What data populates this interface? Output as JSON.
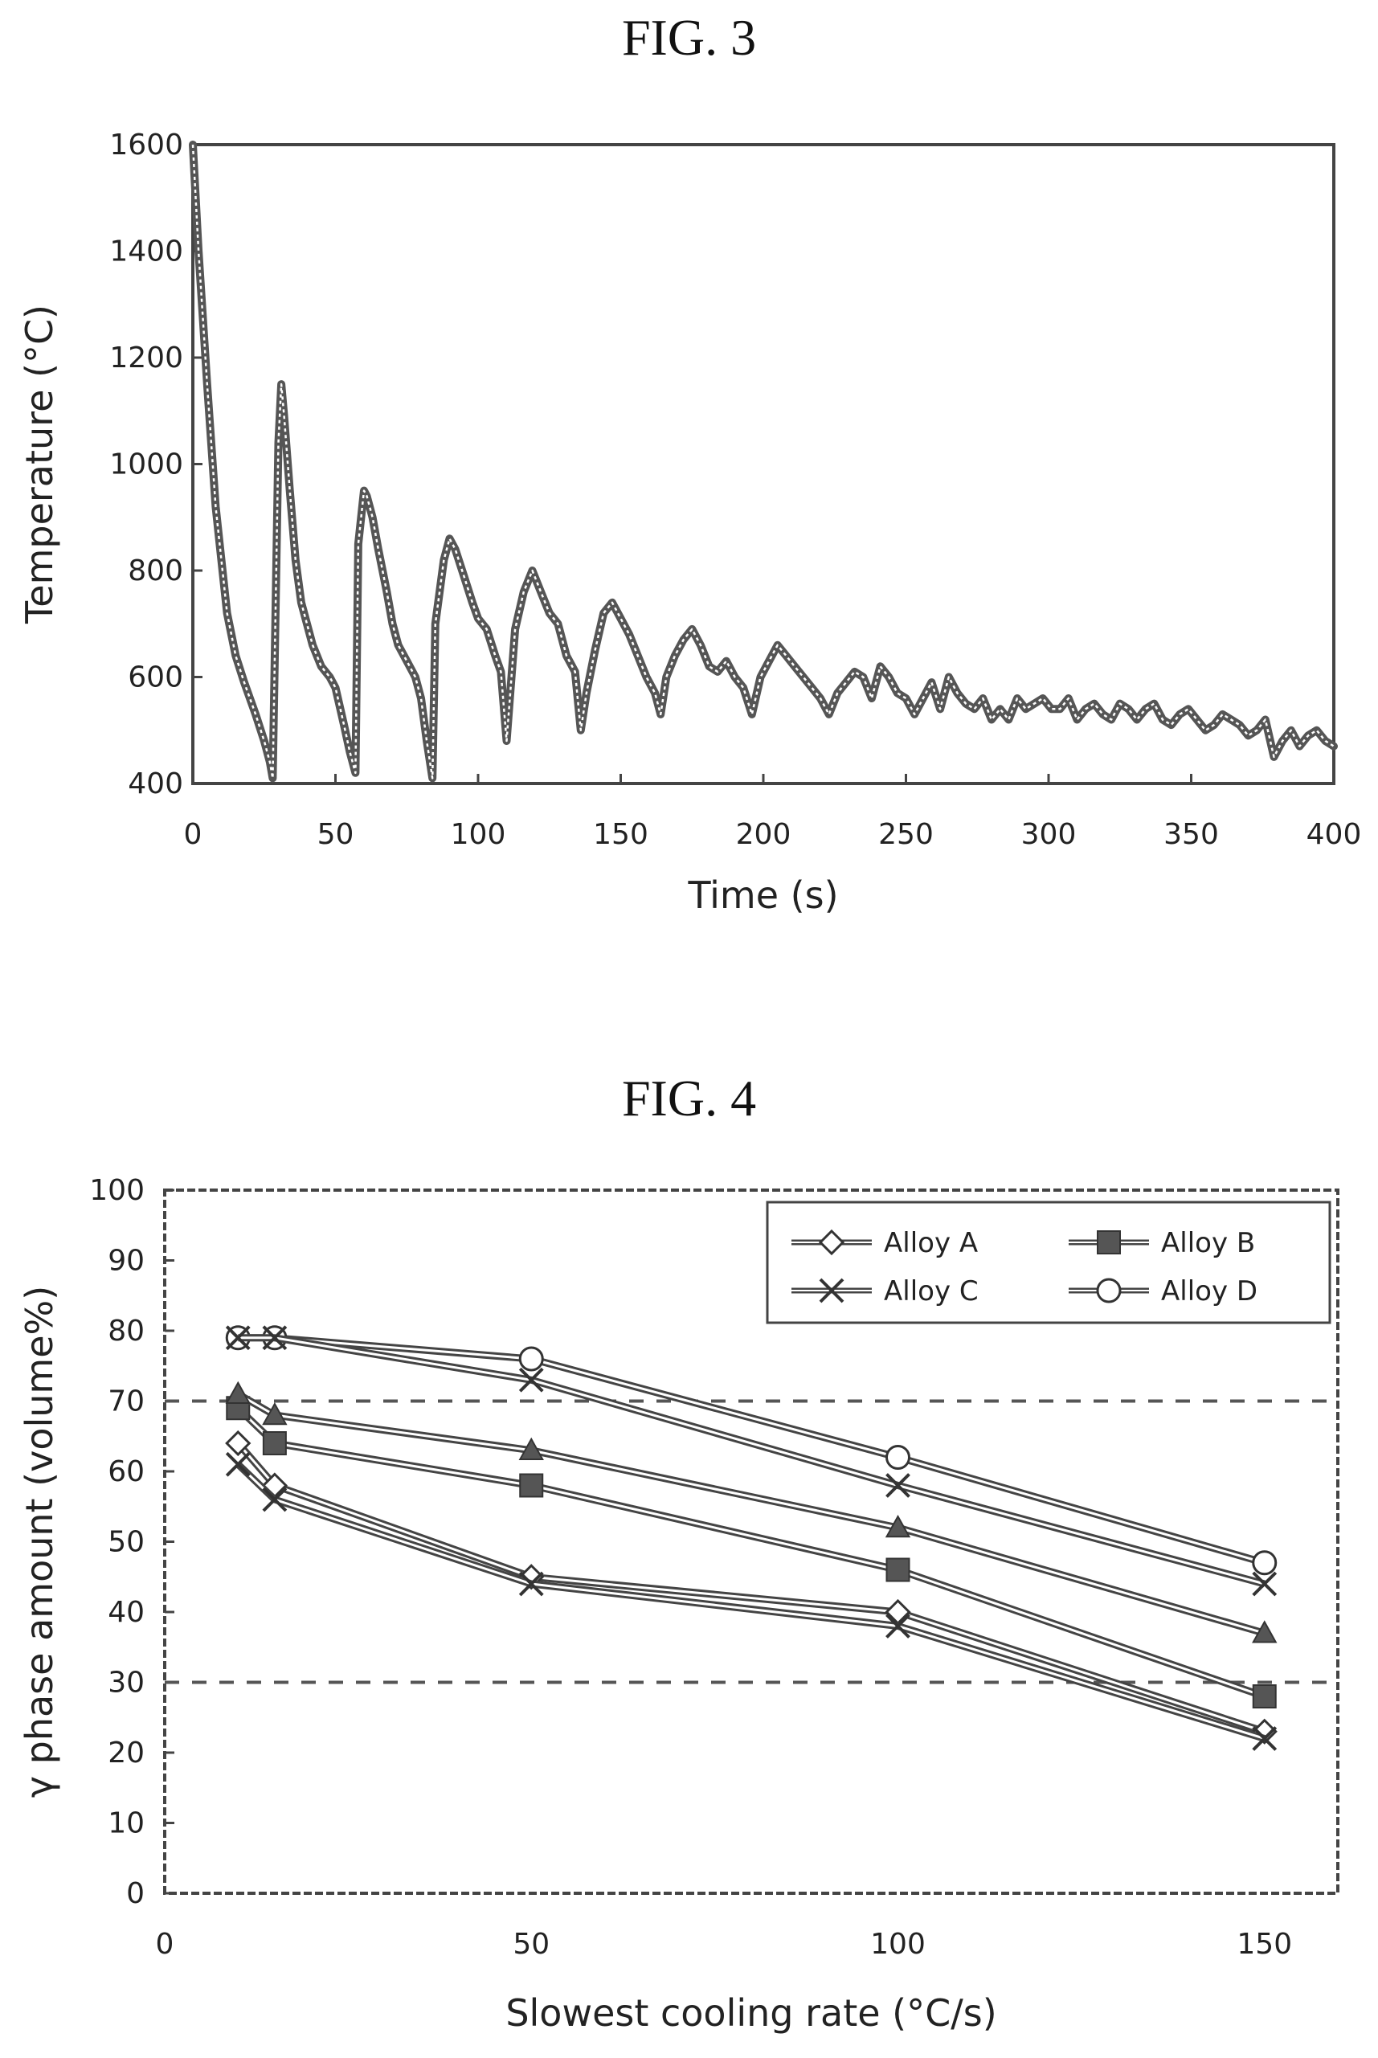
{
  "figures": {
    "fig3_title": "FIG. 3",
    "fig4_title": "FIG. 4"
  },
  "chart_data": [
    {
      "type": "line",
      "title": "FIG. 3",
      "xlabel": "Time (s)",
      "ylabel": "Temperature (°C)",
      "xlim": [
        0,
        400
      ],
      "ylim": [
        400,
        1600
      ],
      "xticks": [
        0,
        50,
        100,
        150,
        200,
        250,
        300,
        350,
        400
      ],
      "yticks": [
        400,
        600,
        800,
        1000,
        1200,
        1400,
        1600
      ],
      "grid": false,
      "color": "#555555",
      "series": [
        {
          "x": [
            0,
            2,
            5,
            8,
            10,
            12,
            15,
            18,
            20,
            22,
            25,
            27,
            28,
            30,
            31,
            32,
            34,
            36,
            38,
            40,
            42,
            45,
            48,
            50,
            53,
            55,
            57,
            58,
            60,
            61,
            63,
            65,
            68,
            70,
            72,
            75,
            78,
            80,
            82,
            84,
            85,
            88,
            90,
            92,
            95,
            98,
            100,
            103,
            106,
            108,
            110,
            113,
            116,
            119,
            122,
            125,
            128,
            131,
            134,
            136,
            138,
            141,
            144,
            147,
            150,
            153,
            156,
            159,
            162,
            164,
            166,
            169,
            172,
            175,
            178,
            181,
            184,
            187,
            190,
            193,
            196,
            199,
            202,
            205,
            208,
            211,
            214,
            217,
            220,
            223,
            226,
            229,
            232,
            235,
            238,
            241,
            244,
            247,
            250,
            253,
            256,
            259,
            262,
            265,
            268,
            271,
            274,
            277,
            280,
            283,
            286,
            289,
            292,
            295,
            298,
            301,
            304,
            307,
            310,
            313,
            316,
            319,
            322,
            325,
            328,
            331,
            334,
            337,
            340,
            343,
            346,
            349,
            352,
            355,
            358,
            361,
            364,
            367,
            370,
            373,
            376,
            379,
            382,
            385,
            388,
            391,
            394,
            397,
            400
          ],
          "y": [
            1600,
            1400,
            1150,
            920,
            820,
            720,
            640,
            590,
            560,
            530,
            480,
            440,
            410,
            1040,
            1150,
            1090,
            950,
            820,
            740,
            700,
            660,
            620,
            600,
            580,
            510,
            460,
            420,
            850,
            950,
            940,
            900,
            840,
            760,
            700,
            660,
            630,
            600,
            560,
            480,
            410,
            700,
            820,
            860,
            840,
            790,
            740,
            710,
            690,
            640,
            610,
            480,
            690,
            760,
            800,
            760,
            720,
            700,
            640,
            610,
            500,
            570,
            650,
            720,
            740,
            710,
            680,
            640,
            600,
            570,
            530,
            600,
            640,
            670,
            690,
            660,
            620,
            610,
            630,
            600,
            580,
            530,
            600,
            630,
            660,
            640,
            620,
            600,
            580,
            560,
            530,
            570,
            590,
            610,
            600,
            560,
            620,
            600,
            570,
            560,
            530,
            560,
            590,
            540,
            600,
            570,
            550,
            540,
            560,
            520,
            540,
            520,
            560,
            540,
            550,
            560,
            540,
            540,
            560,
            520,
            540,
            550,
            530,
            520,
            550,
            540,
            520,
            540,
            550,
            520,
            510,
            530,
            540,
            520,
            500,
            510,
            530,
            520,
            510,
            490,
            500,
            520,
            450,
            480,
            500,
            470,
            490,
            500,
            480,
            470
          ]
        }
      ]
    },
    {
      "type": "line",
      "title": "FIG. 4",
      "xlabel": "Slowest cooling rate (°C/s)",
      "ylabel": "γ phase amount (volume%)",
      "xlim": [
        0,
        160
      ],
      "ylim": [
        0,
        100
      ],
      "xticks": [
        0,
        50,
        100,
        150
      ],
      "yticks": [
        0,
        10,
        20,
        30,
        40,
        50,
        60,
        70,
        80,
        90,
        100
      ],
      "grid": false,
      "legend_position": "top-right",
      "reference_lines": [
        70,
        30
      ],
      "x": [
        10,
        15,
        50,
        100,
        150
      ],
      "series": [
        {
          "name": "Alloy A",
          "marker": "diamond-open",
          "values": [
            64,
            58,
            45,
            40,
            23
          ]
        },
        {
          "name": "Alloy B",
          "marker": "square-filled",
          "values": [
            69,
            64,
            58,
            46,
            28
          ]
        },
        {
          "name": "Alloy C",
          "marker": "x",
          "values": [
            61,
            56,
            44,
            38,
            22
          ]
        },
        {
          "name": "Alloy D",
          "marker": "circle-open",
          "values": [
            79,
            79,
            76,
            62,
            47
          ]
        }
      ],
      "extra_series": [
        {
          "marker": "triangle-filled",
          "values": [
            71,
            68,
            63,
            52,
            37
          ]
        },
        {
          "marker": "x",
          "values": [
            79,
            79,
            73,
            58,
            44
          ]
        }
      ]
    }
  ]
}
